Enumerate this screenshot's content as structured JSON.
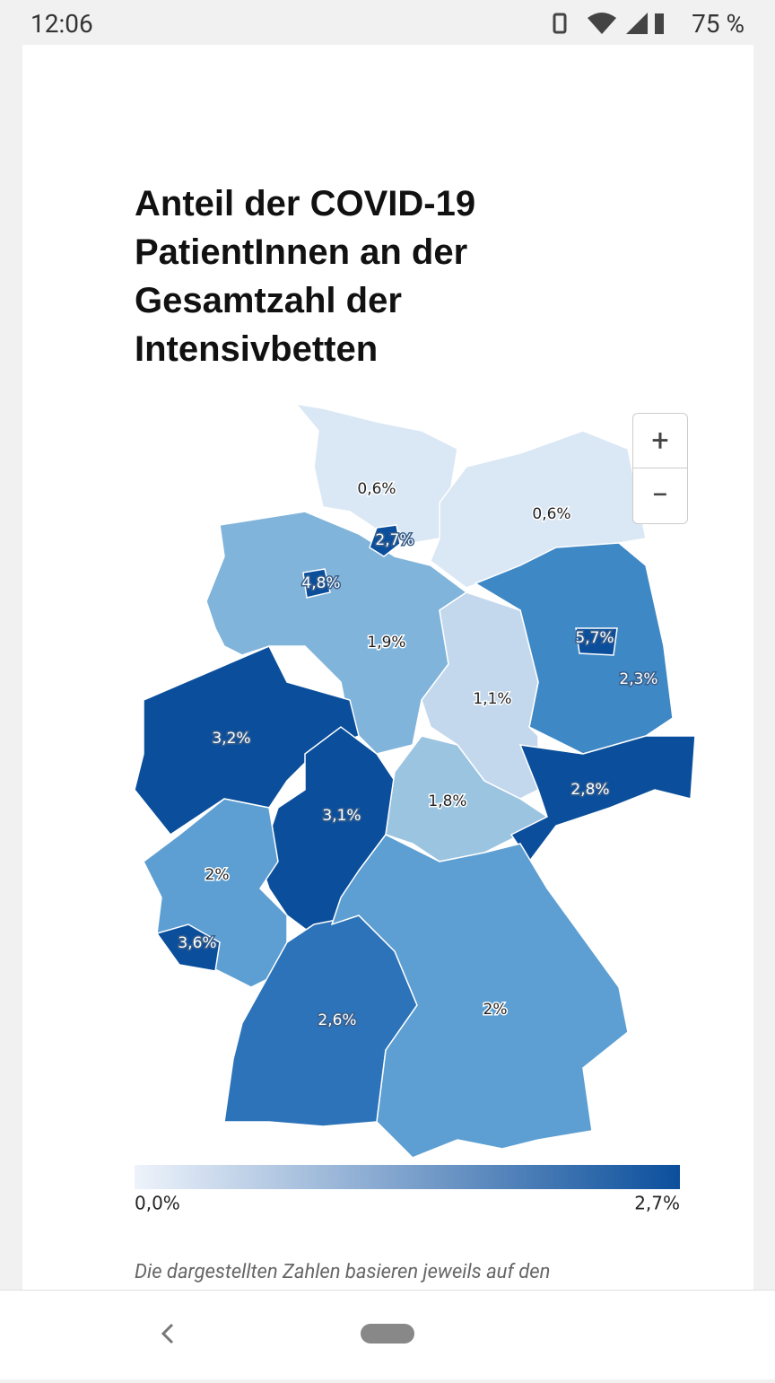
{
  "status_bar": {
    "time": "12:06",
    "battery": "75 %"
  },
  "title": "Anteil der COVID-19 PatientInnen an der Gesamtzahl der Intensivbetten",
  "zoom": {
    "in": "+",
    "out": "−"
  },
  "map": {
    "regions": [
      {
        "label": "0,6%",
        "color": "#dae7f5"
      },
      {
        "label": "0,6%",
        "color": "#dae7f5"
      },
      {
        "label": "1,9%",
        "color": "#80b4db"
      },
      {
        "label": "4,8%",
        "color": "#0b4f9c"
      },
      {
        "label": "2,7%",
        "color": "#0b4f9c"
      },
      {
        "label": "2,3%",
        "color": "#3f88c6"
      },
      {
        "label": "5,7%",
        "color": "#0b4f9c"
      },
      {
        "label": "1,1%",
        "color": "#c3d8ec"
      },
      {
        "label": "3,2%",
        "color": "#0b4f9c"
      },
      {
        "label": "3,1%",
        "color": "#0b4f9c"
      },
      {
        "label": "1,8%",
        "color": "#9bc4e1"
      },
      {
        "label": "2,8%",
        "color": "#0b4f9c"
      },
      {
        "label": "2%",
        "color": "#5d9fd2"
      },
      {
        "label": "3,6%",
        "color": "#0b4f9c"
      },
      {
        "label": "2,6%",
        "color": "#2c73b9"
      },
      {
        "label": "2%",
        "color": "#5d9fd2"
      }
    ]
  },
  "legend": {
    "min": "0,0%",
    "max": "2,7%",
    "color_low": "#eef3fb",
    "color_high": "#0b4f9c"
  },
  "footnote": "Die dargestellten Zahlen basieren jeweils auf den"
}
